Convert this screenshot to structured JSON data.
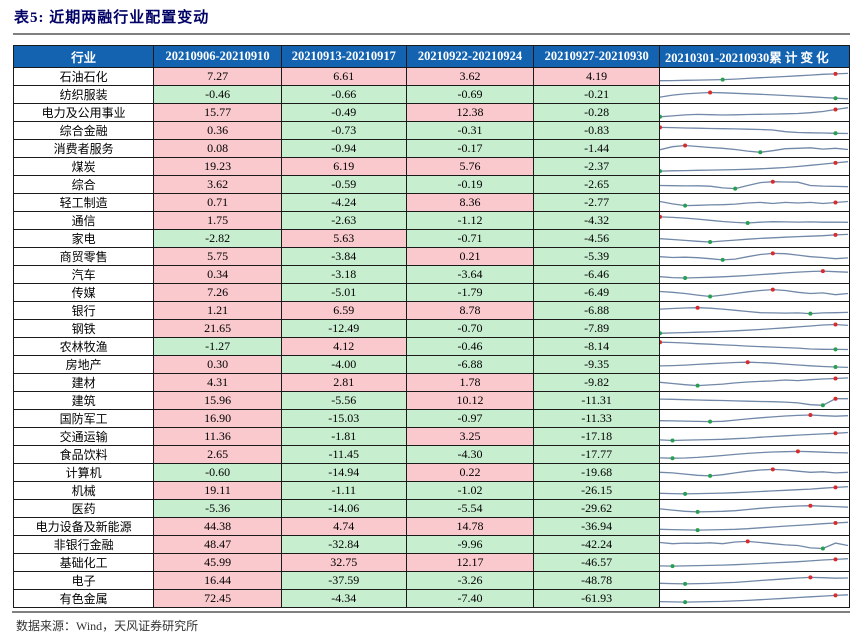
{
  "title": "表5: 近期两融行业配置变动",
  "footer": {
    "source_note": "数据来源：Wind，天风证券研究所"
  },
  "colors": {
    "header_bg": "#1463b1",
    "header_text": "#ffffff",
    "positive_fill": "#fac9ce",
    "negative_fill": "#c8eed0",
    "title_text": "#000066",
    "rule": "#808080",
    "spark_line": "#7188a8",
    "spark_max_dot": "#d92b2b",
    "spark_min_dot": "#26a050"
  },
  "table": {
    "columns": [
      "行业",
      "20210906-20210910",
      "20210913-20210917",
      "20210922-20210924",
      "20210927-20210930",
      "20210301-20210930累 计 变 化"
    ],
    "rows": [
      {
        "industry": "石油石化",
        "values": [
          "7.27",
          "6.61",
          "3.62",
          "4.19"
        ],
        "spark": {
          "points": [
            0.85,
            0.84,
            0.82,
            0.8,
            0.78,
            0.76,
            0.72,
            0.66,
            0.6,
            0.55,
            0.5,
            0.44,
            0.38,
            0.32,
            0.28,
            0.24
          ],
          "green": 5,
          "red": 14
        }
      },
      {
        "industry": "纺织服装",
        "values": [
          "-0.46",
          "-0.66",
          "-0.69",
          "-0.21"
        ],
        "spark": {
          "points": [
            0.72,
            0.55,
            0.45,
            0.38,
            0.33,
            0.36,
            0.4,
            0.44,
            0.48,
            0.53,
            0.58,
            0.63,
            0.69,
            0.75,
            0.81,
            0.86
          ],
          "red": 4,
          "green": 14
        }
      },
      {
        "industry": "电力及公用事业",
        "values": [
          "15.77",
          "-0.49",
          "12.38",
          "-0.28"
        ],
        "spark": {
          "points": [
            0.86,
            0.78,
            0.7,
            0.66,
            0.68,
            0.71,
            0.69,
            0.67,
            0.65,
            0.63,
            0.61,
            0.58,
            0.52,
            0.42,
            0.25,
            0.1
          ],
          "green": 0,
          "red": 14
        }
      },
      {
        "industry": "综合金融",
        "values": [
          "0.36",
          "-0.73",
          "-0.31",
          "-0.83"
        ],
        "spark": {
          "points": [
            0.24,
            0.26,
            0.29,
            0.31,
            0.33,
            0.35,
            0.37,
            0.39,
            0.42,
            0.46,
            0.6,
            0.67,
            0.69,
            0.71,
            0.73,
            0.75
          ],
          "red": 0,
          "green": 14
        }
      },
      {
        "industry": "消费者服务",
        "values": [
          "0.08",
          "-0.94",
          "-0.17",
          "-1.44"
        ],
        "spark": {
          "points": [
            0.6,
            0.35,
            0.25,
            0.33,
            0.42,
            0.48,
            0.58,
            0.72,
            0.82,
            0.68,
            0.52,
            0.48,
            0.44,
            0.55,
            0.48,
            0.58
          ],
          "red": 2,
          "green": 8
        }
      },
      {
        "industry": "煤炭",
        "values": [
          "19.23",
          "6.19",
          "5.76",
          "-2.37"
        ],
        "spark": {
          "points": [
            0.88,
            0.86,
            0.84,
            0.82,
            0.8,
            0.78,
            0.76,
            0.73,
            0.69,
            0.64,
            0.58,
            0.5,
            0.4,
            0.3,
            0.2,
            0.1
          ],
          "green": 0,
          "red": 14
        }
      },
      {
        "industry": "综合",
        "values": [
          "3.62",
          "-0.59",
          "-0.19",
          "-2.65"
        ],
        "spark": {
          "points": [
            0.58,
            0.6,
            0.62,
            0.61,
            0.64,
            0.78,
            0.84,
            0.58,
            0.34,
            0.27,
            0.29,
            0.31,
            0.58,
            0.63,
            0.66,
            0.68
          ],
          "green": 6,
          "red": 9
        }
      },
      {
        "industry": "轻工制造",
        "values": [
          "0.71",
          "-4.24",
          "8.36",
          "-2.77"
        ],
        "spark": {
          "points": [
            0.42,
            0.62,
            0.76,
            0.73,
            0.7,
            0.68,
            0.63,
            0.54,
            0.49,
            0.58,
            0.49,
            0.54,
            0.49,
            0.58,
            0.5,
            0.42
          ],
          "green": 2,
          "red": 14
        }
      },
      {
        "industry": "通信",
        "values": [
          "1.75",
          "-2.63",
          "-1.12",
          "-4.32"
        ],
        "spark": {
          "points": [
            0.2,
            0.24,
            0.3,
            0.38,
            0.48,
            0.58,
            0.66,
            0.71,
            0.64,
            0.6,
            0.62,
            0.63,
            0.62,
            0.64,
            0.63,
            0.65
          ],
          "red": 0,
          "green": 7
        }
      },
      {
        "industry": "家电",
        "values": [
          "-2.82",
          "5.63",
          "-0.71",
          "-4.56"
        ],
        "spark": {
          "points": [
            0.52,
            0.58,
            0.66,
            0.73,
            0.79,
            0.71,
            0.63,
            0.56,
            0.49,
            0.44,
            0.39,
            0.34,
            0.31,
            0.27,
            0.2,
            0.16
          ],
          "green": 4,
          "red": 14
        }
      },
      {
        "industry": "商贸零售",
        "values": [
          "5.75",
          "-3.84",
          "0.21",
          "-5.39"
        ],
        "spark": {
          "points": [
            0.52,
            0.58,
            0.56,
            0.6,
            0.68,
            0.78,
            0.72,
            0.52,
            0.33,
            0.24,
            0.27,
            0.38,
            0.52,
            0.58,
            0.68,
            0.62
          ],
          "green": 5,
          "red": 9
        }
      },
      {
        "industry": "汽车",
        "values": [
          "0.34",
          "-3.18",
          "-3.64",
          "-6.46"
        ],
        "spark": {
          "points": [
            0.68,
            0.76,
            0.79,
            0.76,
            0.73,
            0.69,
            0.64,
            0.58,
            0.51,
            0.44,
            0.37,
            0.3,
            0.25,
            0.22,
            0.27,
            0.31
          ],
          "green": 2,
          "red": 13
        }
      },
      {
        "industry": "传媒",
        "values": [
          "7.26",
          "-5.01",
          "-1.79",
          "-6.49"
        ],
        "spark": {
          "points": [
            0.42,
            0.48,
            0.58,
            0.72,
            0.83,
            0.72,
            0.58,
            0.44,
            0.33,
            0.26,
            0.33,
            0.48,
            0.58,
            0.53,
            0.68,
            0.58
          ],
          "green": 4,
          "red": 9
        }
      },
      {
        "industry": "银行",
        "values": [
          "1.21",
          "6.59",
          "8.78",
          "-6.88"
        ],
        "spark": {
          "points": [
            0.38,
            0.33,
            0.29,
            0.27,
            0.31,
            0.38,
            0.48,
            0.58,
            0.68,
            0.7,
            0.72,
            0.7,
            0.76,
            0.7,
            0.68,
            0.66
          ],
          "red": 3,
          "green": 12
        }
      },
      {
        "industry": "钢铁",
        "values": [
          "21.65",
          "-12.49",
          "-0.70",
          "-7.89"
        ],
        "spark": {
          "points": [
            0.9,
            0.87,
            0.84,
            0.81,
            0.78,
            0.74,
            0.69,
            0.64,
            0.58,
            0.51,
            0.44,
            0.37,
            0.29,
            0.21,
            0.17,
            0.24
          ],
          "green": 0,
          "red": 14
        }
      },
      {
        "industry": "农林牧渔",
        "values": [
          "-1.27",
          "4.12",
          "-0.46",
          "-8.14"
        ],
        "spark": {
          "points": [
            0.14,
            0.17,
            0.21,
            0.27,
            0.31,
            0.37,
            0.41,
            0.47,
            0.51,
            0.55,
            0.59,
            0.63,
            0.71,
            0.73,
            0.74,
            0.75
          ],
          "red": 0,
          "green": 14
        }
      },
      {
        "industry": "房地产",
        "values": [
          "0.30",
          "-4.00",
          "-6.88",
          "-9.35"
        ],
        "spark": {
          "points": [
            0.62,
            0.59,
            0.55,
            0.49,
            0.43,
            0.38,
            0.33,
            0.31,
            0.34,
            0.39,
            0.47,
            0.54,
            0.61,
            0.67,
            0.71,
            0.74
          ],
          "red": 7,
          "green": 14
        }
      },
      {
        "industry": "建材",
        "values": [
          "4.31",
          "2.81",
          "1.78",
          "-9.82"
        ],
        "spark": {
          "points": [
            0.48,
            0.58,
            0.68,
            0.76,
            0.7,
            0.63,
            0.53,
            0.46,
            0.41,
            0.37,
            0.29,
            0.34,
            0.27,
            0.21,
            0.17,
            0.12
          ],
          "green": 3,
          "red": 14
        }
      },
      {
        "industry": "建筑",
        "values": [
          "15.96",
          "-5.56",
          "10.12",
          "-11.31"
        ],
        "spark": {
          "points": [
            0.38,
            0.4,
            0.43,
            0.46,
            0.48,
            0.5,
            0.53,
            0.56,
            0.58,
            0.6,
            0.63,
            0.7,
            0.85,
            0.9,
            0.35,
            0.35
          ],
          "green": 13,
          "red": 14
        }
      },
      {
        "industry": "国防军工",
        "values": [
          "16.90",
          "-15.03",
          "-0.97",
          "-11.33"
        ],
        "spark": {
          "points": [
            0.68,
            0.7,
            0.72,
            0.74,
            0.76,
            0.73,
            0.63,
            0.53,
            0.44,
            0.37,
            0.29,
            0.24,
            0.21,
            0.27,
            0.31,
            0.27
          ],
          "green": 4,
          "red": 12
        }
      },
      {
        "industry": "交通运输",
        "values": [
          "11.36",
          "-1.81",
          "3.25",
          "-17.18"
        ],
        "spark": {
          "points": [
            0.78,
            0.83,
            0.8,
            0.78,
            0.76,
            0.73,
            0.68,
            0.63,
            0.56,
            0.5,
            0.44,
            0.38,
            0.33,
            0.28,
            0.23,
            0.17
          ],
          "green": 1,
          "red": 14
        }
      },
      {
        "industry": "食品饮料",
        "values": [
          "2.65",
          "-11.45",
          "-4.30",
          "-17.77"
        ],
        "spark": {
          "points": [
            0.78,
            0.81,
            0.79,
            0.74,
            0.67,
            0.58,
            0.49,
            0.41,
            0.34,
            0.29,
            0.27,
            0.24,
            0.27,
            0.31,
            0.34,
            0.37
          ],
          "green": 1,
          "red": 11
        }
      },
      {
        "industry": "计算机",
        "values": [
          "-0.60",
          "-14.94",
          "0.22",
          "-19.68"
        ],
        "spark": {
          "points": [
            0.48,
            0.53,
            0.63,
            0.73,
            0.78,
            0.68,
            0.53,
            0.39,
            0.29,
            0.24,
            0.29,
            0.39,
            0.48,
            0.44,
            0.53,
            0.48
          ],
          "green": 4,
          "red": 9
        }
      },
      {
        "industry": "机械",
        "values": [
          "19.11",
          "-1.11",
          "-1.02",
          "-26.15"
        ],
        "spark": {
          "points": [
            0.73,
            0.76,
            0.78,
            0.76,
            0.74,
            0.72,
            0.68,
            0.63,
            0.58,
            0.53,
            0.48,
            0.43,
            0.38,
            0.31,
            0.24,
            0.18
          ],
          "green": 2,
          "red": 14
        }
      },
      {
        "industry": "医药",
        "values": [
          "-5.36",
          "-14.06",
          "-5.54",
          "-29.62"
        ],
        "spark": {
          "points": [
            0.53,
            0.63,
            0.73,
            0.78,
            0.76,
            0.73,
            0.68,
            0.58,
            0.48,
            0.41,
            0.34,
            0.29,
            0.27,
            0.31,
            0.34,
            0.39
          ],
          "green": 3,
          "red": 12
        }
      },
      {
        "industry": "电力设备及新能源",
        "values": [
          "44.38",
          "4.74",
          "14.78",
          "-36.94"
        ],
        "spark": {
          "points": [
            0.73,
            0.76,
            0.78,
            0.8,
            0.78,
            0.76,
            0.73,
            0.68,
            0.61,
            0.54,
            0.47,
            0.41,
            0.34,
            0.27,
            0.21,
            0.15
          ],
          "green": 3,
          "red": 14
        }
      },
      {
        "industry": "非银行金融",
        "values": [
          "48.47",
          "-32.84",
          "-9.96",
          "-42.24"
        ],
        "spark": {
          "points": [
            0.33,
            0.43,
            0.38,
            0.4,
            0.36,
            0.43,
            0.29,
            0.24,
            0.33,
            0.43,
            0.53,
            0.58,
            0.78,
            0.83,
            0.38,
            0.58
          ],
          "red": 7,
          "green": 13
        }
      },
      {
        "industry": "基础化工",
        "values": [
          "45.99",
          "32.75",
          "12.17",
          "-46.57"
        ],
        "spark": {
          "points": [
            0.78,
            0.8,
            0.78,
            0.76,
            0.74,
            0.72,
            0.68,
            0.63,
            0.58,
            0.53,
            0.48,
            0.43,
            0.37,
            0.29,
            0.24,
            0.18
          ],
          "green": 1,
          "red": 14
        }
      },
      {
        "industry": "电子",
        "values": [
          "16.44",
          "-37.59",
          "-3.26",
          "-48.78"
        ],
        "spark": {
          "points": [
            0.73,
            0.76,
            0.78,
            0.76,
            0.74,
            0.7,
            0.66,
            0.58,
            0.5,
            0.43,
            0.36,
            0.29,
            0.24,
            0.27,
            0.31,
            0.29
          ],
          "green": 2,
          "red": 12
        }
      },
      {
        "industry": "有色金属",
        "values": [
          "72.45",
          "-4.34",
          "-7.40",
          "-61.93"
        ],
        "spark": {
          "points": [
            0.76,
            0.78,
            0.8,
            0.78,
            0.76,
            0.74,
            0.7,
            0.66,
            0.6,
            0.54,
            0.48,
            0.42,
            0.36,
            0.3,
            0.24,
            0.19
          ],
          "green": 2,
          "red": 14
        }
      }
    ]
  }
}
